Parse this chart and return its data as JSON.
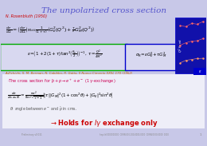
{
  "title": "The unpolarized cross section",
  "title_color": "#5555cc",
  "title_fontstyle": "italic",
  "bg_color": "#c8c8e8",
  "rosenbluth_ref": "N. Rosenbluth (1950)",
  "ref_color": "#cc0000",
  "eq1": "$\\frac{d\\sigma}{d\\Omega} = \\left(\\frac{d\\sigma}{d\\Omega}\\right)_{Mott} \\frac{1}{(1+\\tau)}\\left(G_E^2(Q^2)+\\frac{\\tau}{\\varepsilon}G_M^2(Q^2)\\right)$",
  "box_eq": "$\\varepsilon = \\left(1+2(1+\\tau)\\tan^2\\!\\left(\\frac{\\theta_e}{2}\\right)\\right)^{-1}$,  $\\tau = \\frac{Q^2}{4M^2}$",
  "sigma_R": "$\\sigma_R = \\varepsilon G_E^2 + \\tau G_M^2$",
  "ref2": "A.Zichichi, S. M. Berman, N. Cabibbo, R. Gatto, Il Nuovo Cimento XXIV, 170 (1962)",
  "ref2_color": "#cc6600",
  "cross_section_text": "The cross section for $\\bar{p}+p \\to e^++e^-$ (1 $\\gamma$-exchange):",
  "cs_eq": "$\\frac{d\\sigma}{d(\\cos\\theta)} = \\frac{\\pi\\alpha^2}{8m^2\\sqrt{\\tau-1}}\\left[|\\tau||G_M|^2(1+\\cos^2\\theta)+|G_E|^2\\sin^2\\theta\\right]$",
  "theta_def": "$\\theta$: angle between $e^-$ and $\\bar{p}$ in cms.",
  "holds_text": "$\\to$Holds for $I\\gamma$ exchange only",
  "holds_color": "#cc0000",
  "green_box_color": "#00aa00",
  "blue_box_color": "#0000cc",
  "white_box_color": "#ffffff",
  "lower_bg": "#e8e8f0"
}
